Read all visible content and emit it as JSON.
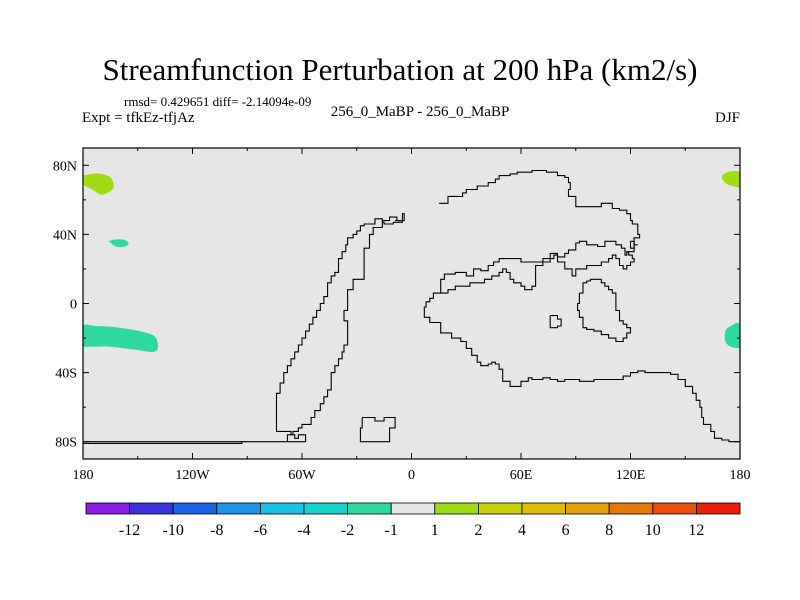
{
  "title": "Streamfunction Perturbation at 200 hPa (km2/s)",
  "stats_line": "rmsd= 0.429651 diff= -2.14094e-09",
  "experiment": "Expt = tfkEz-tfjAz",
  "center_label": "256_0_MaBP - 256_0_MaBP",
  "season": "DJF",
  "map": {
    "lon_range": [
      -180,
      180
    ],
    "lat_range": [
      -90,
      90
    ],
    "background_color": "#e6e6e6",
    "x_ticks": [
      {
        "lon": -180,
        "label": "180"
      },
      {
        "lon": -120,
        "label": "120W"
      },
      {
        "lon": -60,
        "label": "60W"
      },
      {
        "lon": 0,
        "label": "0"
      },
      {
        "lon": 60,
        "label": "60E"
      },
      {
        "lon": 120,
        "label": "120E"
      },
      {
        "lon": 180,
        "label": "180"
      }
    ],
    "y_ticks": [
      {
        "lat": 80,
        "label": "80N"
      },
      {
        "lat": 40,
        "label": "40N"
      },
      {
        "lat": 0,
        "label": "0"
      },
      {
        "lat": -40,
        "label": "40S"
      },
      {
        "lat": -80,
        "label": "80S"
      }
    ],
    "filled_regions": [
      {
        "name": "north-pacific-high-lat",
        "color": "#a0dc14",
        "lon": [
          -180,
          -180,
          -175,
          -170,
          -165,
          -163,
          -165,
          -170,
          -175,
          -180
        ],
        "lat": [
          74,
          69,
          66,
          63,
          65,
          68,
          73,
          75,
          75,
          74
        ]
      },
      {
        "name": "north-pacific-mid-lat",
        "color": "#2ed8a0",
        "lon": [
          -166,
          -162,
          -157,
          -155,
          -158,
          -163,
          -166
        ],
        "lat": [
          36,
          33,
          33,
          35,
          37,
          37,
          36
        ]
      },
      {
        "name": "south-pacific",
        "color": "#2ed8a0",
        "lon": [
          -180,
          -173,
          -160,
          -145,
          -140,
          -139,
          -142,
          -150,
          -165,
          -175,
          -180
        ],
        "lat": [
          -13,
          -13,
          -14,
          -17,
          -20,
          -26,
          -28,
          -27,
          -25,
          -25,
          -24
        ]
      },
      {
        "name": "east-edge-high-lat",
        "color": "#a0dc14",
        "lon": [
          180,
          180,
          173,
          170,
          173,
          180
        ],
        "lat": [
          67,
          76,
          76,
          73,
          69,
          67
        ]
      },
      {
        "name": "east-edge-south",
        "color": "#2ed8a0",
        "lon": [
          180,
          180,
          175,
          172,
          172,
          175,
          180
        ],
        "lat": [
          -26,
          -12,
          -13,
          -16,
          -22,
          -25,
          -26
        ]
      }
    ],
    "coastlines": [
      {
        "name": "americas",
        "lon": [
          -180,
          -150,
          -120,
          -93,
          -70,
          -68,
          -65,
          -62,
          -60,
          -55,
          -53,
          -50,
          -48,
          -46,
          -44,
          -44,
          -42,
          -40,
          -38,
          -37,
          -35,
          -35,
          -37,
          -37,
          -35,
          -32,
          -28,
          -26,
          -26,
          -23,
          -21,
          -16,
          -12,
          -8,
          -9,
          -4,
          -5,
          -10,
          -15,
          -16,
          -20,
          -26,
          -28,
          -30,
          -32,
          -35,
          -36,
          -38,
          -40,
          -40,
          -42,
          -44,
          -46,
          -46,
          -48,
          -50,
          -52,
          -54,
          -56,
          -58,
          -60,
          -62,
          -64,
          -66,
          -68,
          -70,
          -72,
          -74,
          -74,
          -68,
          -66,
          -64,
          -62,
          -60,
          -58,
          -58,
          -70,
          -93,
          -120,
          -150,
          -180
        ],
        "lat": [
          -80,
          -80,
          -80,
          -80,
          -80,
          -76,
          -74,
          -72,
          -70,
          -66,
          -62,
          -58,
          -54,
          -50,
          -46,
          -40,
          -36,
          -32,
          -28,
          -24,
          -20,
          -10,
          -10,
          -4,
          8,
          14,
          14,
          22,
          32,
          40,
          44,
          48,
          50,
          48,
          48,
          52,
          47,
          46,
          47,
          49,
          46,
          45,
          42,
          40,
          38,
          34,
          30,
          26,
          22,
          18,
          16,
          12,
          8,
          4,
          0,
          -4,
          -8,
          -12,
          -16,
          -20,
          -24,
          -28,
          -32,
          -36,
          -40,
          -46,
          -52,
          -58,
          -74,
          -74,
          -76,
          -78,
          -76,
          -76,
          -78,
          -80,
          -80,
          -81,
          -81,
          -81,
          -81
        ]
      },
      {
        "name": "eurasia-africa",
        "lon": [
          15,
          15,
          20,
          28,
          30,
          36,
          42,
          46,
          48,
          54,
          58,
          62,
          66,
          70,
          74,
          80,
          84,
          86,
          87,
          86,
          90,
          95,
          104,
          110,
          114,
          118,
          120,
          121,
          124,
          125,
          122,
          124,
          122,
          118,
          117,
          115,
          112,
          106,
          102,
          96,
          92,
          90,
          86,
          84,
          80,
          76,
          70,
          64,
          60,
          54,
          48,
          45,
          42,
          38,
          34,
          30,
          24,
          18,
          16,
          16,
          14,
          12,
          10,
          8,
          7,
          10,
          16,
          22,
          27,
          30,
          33,
          36,
          38,
          40,
          42,
          44,
          46,
          48,
          50,
          54,
          56,
          60,
          64,
          66,
          68,
          72,
          76,
          80,
          84,
          92,
          100,
          108,
          116,
          120,
          124,
          128,
          132,
          136,
          140,
          142,
          146,
          150,
          154,
          156,
          158,
          159,
          160,
          164,
          166,
          170,
          172,
          174,
          180
        ],
        "lat": [
          58,
          58,
          62,
          64,
          66,
          68,
          70,
          72,
          74,
          75,
          76,
          76,
          77,
          77,
          76,
          74,
          73,
          70,
          66,
          62,
          56,
          56,
          58,
          55,
          54,
          52,
          48,
          46,
          40,
          38,
          34,
          34,
          30,
          28,
          32,
          34,
          36,
          33,
          34,
          36,
          35,
          31,
          29,
          27,
          29,
          24,
          24,
          24,
          26,
          26,
          24,
          22,
          19,
          20,
          16,
          18,
          17,
          14,
          10,
          6,
          6,
          3,
          1,
          -2,
          -8,
          -11,
          -17,
          -20,
          -22,
          -26,
          -30,
          -34,
          -36,
          -36,
          -35,
          -34,
          -35,
          -38,
          -45,
          -48,
          -48,
          -45,
          -43,
          -44,
          -44,
          -43,
          -44,
          -45,
          -44,
          -45,
          -44,
          -44,
          -42,
          -40,
          -39,
          -40,
          -40,
          -40,
          -40,
          -41,
          -44,
          -48,
          -52,
          -56,
          -60,
          -66,
          -70,
          -74,
          -78,
          -79,
          -79,
          -80,
          -80
        ]
      },
      {
        "name": "arabia-india",
        "lon": [
          16,
          20,
          24,
          28,
          32,
          36,
          40,
          44,
          48,
          50,
          52,
          54,
          56,
          58,
          60,
          62,
          64,
          66,
          68,
          68,
          72,
          76,
          78,
          80,
          84,
          88,
          90,
          96,
          100,
          104,
          108,
          110,
          112,
          114,
          116,
          118,
          120,
          122,
          121,
          119,
          118
        ],
        "lat": [
          6,
          8,
          10,
          10,
          12,
          12,
          14,
          16,
          18,
          20,
          18,
          14,
          12,
          12,
          10,
          8,
          8,
          10,
          16,
          22,
          26,
          26,
          28,
          24,
          20,
          16,
          20,
          22,
          22,
          24,
          26,
          28,
          26,
          22,
          20,
          22,
          24,
          26,
          28,
          30,
          30
        ]
      },
      {
        "name": "australia",
        "lon": [
          92,
          94,
          96,
          98,
          100,
          104,
          106,
          108,
          110,
          112,
          114,
          116,
          118,
          120,
          120,
          118,
          116,
          112,
          108,
          104,
          100,
          96,
          94,
          92,
          91,
          92
        ],
        "lat": [
          6,
          12,
          13,
          14,
          14,
          12,
          10,
          8,
          6,
          -4,
          -10,
          -12,
          -14,
          -14,
          -17,
          -20,
          -22,
          -20,
          -18,
          -16,
          -15,
          -14,
          -8,
          -4,
          0,
          6
        ]
      },
      {
        "name": "madagascar-ish",
        "lon": [
          76,
          78,
          80,
          82,
          82,
          80,
          78,
          76,
          76
        ],
        "lat": [
          -7,
          -7,
          -9,
          -9,
          -13,
          -14,
          -14,
          -12,
          -7
        ]
      },
      {
        "name": "tiny-island",
        "lon": [
          120,
          122,
          122,
          120,
          120
        ],
        "lat": [
          36,
          36,
          32,
          32,
          36
        ]
      },
      {
        "name": "antarctic-island",
        "lon": [
          -27,
          -20,
          -15,
          -9,
          -9,
          -12,
          -16,
          -24,
          -28,
          -28,
          -27
        ],
        "lat": [
          -66,
          -68,
          -66,
          -66,
          -72,
          -80,
          -80,
          -80,
          -80,
          -72,
          -66
        ]
      }
    ]
  },
  "colorbar": {
    "colors": [
      "#8c1ee6",
      "#3c32dc",
      "#1e64e6",
      "#1e96e6",
      "#14c3e6",
      "#14d2c8",
      "#2ed8a0",
      "#e6e6e6",
      "#a0dc14",
      "#c8d20a",
      "#dcbe0a",
      "#e6a00a",
      "#e6780a",
      "#e6500a",
      "#e61e0a"
    ],
    "labels": [
      "-12",
      "-10",
      "-8",
      "-6",
      "-4",
      "-2",
      "-1",
      "1",
      "2",
      "4",
      "6",
      "8",
      "10",
      "12"
    ]
  }
}
